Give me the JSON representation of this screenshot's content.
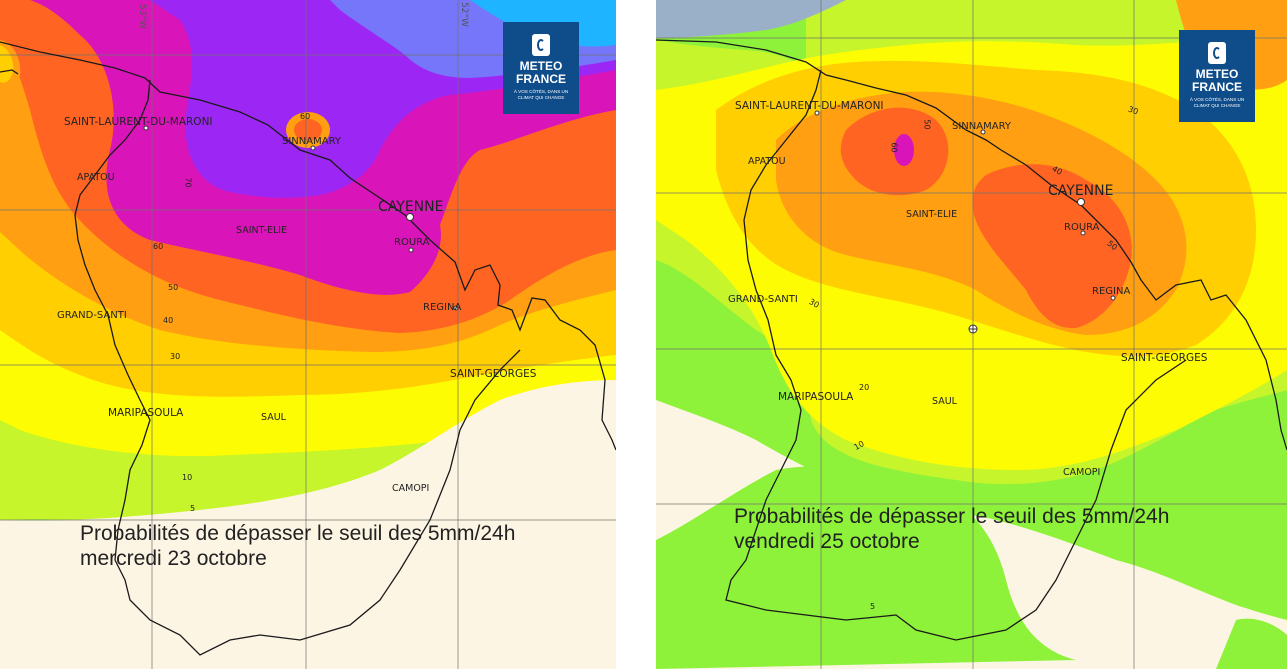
{
  "branding": {
    "logo_line1": "METEO",
    "logo_line2": "FRANCE",
    "logo_tagline": "À VOS CÔTÉS, DANS UN CLIMAT QUI CHANGE",
    "logo_color": "#0f4c8a"
  },
  "legend_colors": {
    "5": "#fdf5e4",
    "10": "#8ef23a",
    "20": "#c6f52b",
    "30": "#fefc03",
    "40": "#ffcf01",
    "50": "#ff9f11",
    "60": "#ff6423",
    "70": "#d915b9",
    "80": "#9c27f5",
    "90": "#7676fa",
    "100": "#1fb4ff"
  },
  "left_map": {
    "caption_line1": "Probabilités de dépasser le seuil des 5mm/24h",
    "caption_line2": "mercredi 23 octobre",
    "longitude_labels": [
      "53°W",
      "52°W"
    ],
    "towns": [
      "SAINT-LAURENT-DU-MARONI",
      "SINNAMARY",
      "APATOU",
      "CAYENNE",
      "SAINT-ELIE",
      "ROURA",
      "REGINA",
      "GRAND-SANTI",
      "SAINT-GEORGES",
      "MARIPASOULA",
      "SAUL",
      "CAMOPI"
    ],
    "contour_labels": [
      "60",
      "70",
      "60",
      "50",
      "40",
      "30",
      "10",
      "5"
    ]
  },
  "right_map": {
    "caption_line1": "Probabilités de dépasser le seuil des 5mm/24h",
    "caption_line2": "vendredi 25 octobre",
    "towns": [
      "SAINT-LAURENT-DU-MARONI",
      "SINNAMARY",
      "APATOU",
      "CAYENNE",
      "SAINT-ELIE",
      "ROURA",
      "REGINA",
      "GRAND-SANTI",
      "SAINT-GEORGES",
      "MARIPASOULA",
      "SAUL",
      "CAMOPI"
    ],
    "contour_labels": [
      "30",
      "50",
      "60",
      "40",
      "50",
      "30",
      "20",
      "10",
      "5"
    ]
  }
}
